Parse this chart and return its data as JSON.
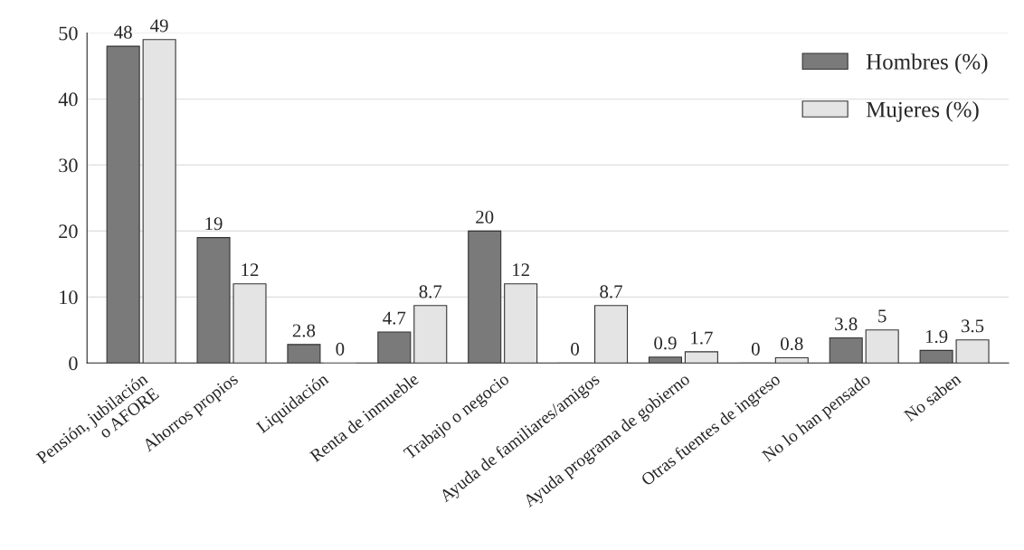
{
  "chart_data": {
    "type": "bar",
    "categories": [
      "Pensión, jubilación\no AFORE",
      "Ahorros propios",
      "Liquidación",
      "Renta de inmueble",
      "Trabajo o negocio",
      "Ayuda de familiares/amigos",
      "Ayuda programa de gobierno",
      "Otras fuentes de ingreso",
      "No lo han pensado",
      "No saben"
    ],
    "series": [
      {
        "name": "Hombres (%)",
        "color": "#7a7a7a",
        "values": [
          48,
          19,
          2.8,
          4.7,
          20,
          0,
          0.9,
          0,
          3.8,
          1.9
        ]
      },
      {
        "name": "Mujeres (%)",
        "color": "#e4e4e4",
        "values": [
          49,
          12,
          0,
          8.7,
          12,
          8.7,
          1.7,
          0.8,
          5,
          3.5
        ]
      }
    ],
    "ylim": [
      0,
      50
    ],
    "yticks": [
      0,
      10,
      20,
      30,
      40,
      50
    ],
    "grid": "y",
    "legend": "top right",
    "data_labels": true
  }
}
